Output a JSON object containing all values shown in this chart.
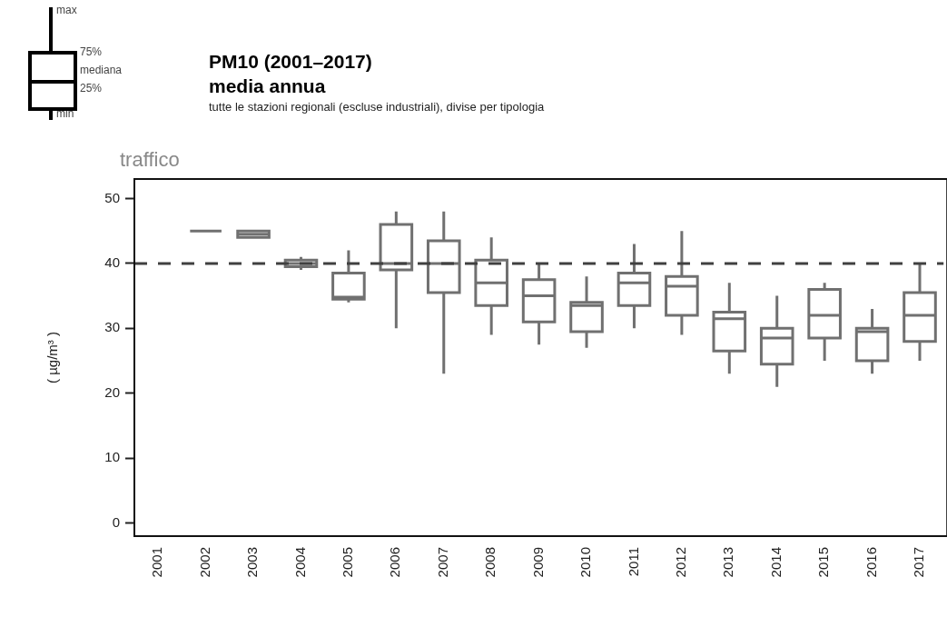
{
  "chart_data": {
    "type": "box",
    "title": "PM10 (2001–2017)",
    "subtitle": "media annua",
    "ylabel": "( µg/m³ )",
    "annotations": [
      "tutte le stazioni regionali (escluse industriali), divise per tipologia",
      "traffico",
      "max",
      "75%",
      "mediana",
      "25%",
      "min"
    ],
    "categories": [
      "2001",
      "2002",
      "2003",
      "2004",
      "2005",
      "2006",
      "2007",
      "2008",
      "2009",
      "2010",
      "2011",
      "2012",
      "2013",
      "2014",
      "2015",
      "2016",
      "2017"
    ],
    "color": "#707070",
    "boxes": [
      null,
      {
        "low": 45,
        "q1": 45,
        "median": 45,
        "q3": 45,
        "high": 45
      },
      {
        "low": 44,
        "q1": 44,
        "median": 44.5,
        "q3": 45,
        "high": 45
      },
      {
        "low": 39,
        "q1": 39.5,
        "median": 40,
        "q3": 40.5,
        "high": 41
      },
      {
        "low": 34,
        "q1": 34.5,
        "median": 34.8,
        "q3": 38.5,
        "high": 42
      },
      {
        "low": 30,
        "q1": 39,
        "median": 40,
        "q3": 46,
        "high": 48
      },
      {
        "low": 23,
        "q1": 35.5,
        "median": 40,
        "q3": 43.5,
        "high": 48
      },
      {
        "low": 29,
        "q1": 33.5,
        "median": 37,
        "q3": 40.5,
        "high": 44
      },
      {
        "low": 27.5,
        "q1": 31,
        "median": 35,
        "q3": 37.5,
        "high": 40
      },
      {
        "low": 27,
        "q1": 29.5,
        "median": 33.5,
        "q3": 34,
        "high": 38
      },
      {
        "low": 30,
        "q1": 33.5,
        "median": 37,
        "q3": 38.5,
        "high": 43
      },
      {
        "low": 29,
        "q1": 32,
        "median": 36.5,
        "q3": 38,
        "high": 45
      },
      {
        "low": 23,
        "q1": 26.5,
        "median": 31.5,
        "q3": 32.5,
        "high": 37
      },
      {
        "low": 21,
        "q1": 24.5,
        "median": 28.5,
        "q3": 30,
        "high": 35
      },
      {
        "low": 25,
        "q1": 28.5,
        "median": 32,
        "q3": 36,
        "high": 37
      },
      {
        "low": 23,
        "q1": 25,
        "median": 29.5,
        "q3": 30,
        "high": 33
      },
      {
        "low": 25,
        "q1": 28,
        "median": 32,
        "q3": 35.5,
        "high": 40
      }
    ],
    "ylim": [
      -2,
      53
    ],
    "yticks": [
      0,
      10,
      20,
      30,
      40,
      50
    ],
    "grid": false,
    "legend": false,
    "ref_lines": [
      {
        "axis": "y",
        "value": 40,
        "color": "#404040",
        "line_style": "dashed"
      }
    ]
  }
}
